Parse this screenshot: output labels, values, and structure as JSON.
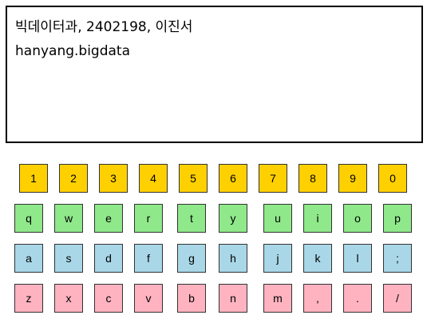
{
  "display": {
    "line1": "빅데이터과, 2402198, 이진서",
    "line2": "hanyang.bigdata"
  },
  "keyboard": {
    "row_numbers": [
      "1",
      "2",
      "3",
      "4",
      "5",
      "6",
      "7",
      "8",
      "9",
      "0"
    ],
    "row_qwerty": [
      "q",
      "w",
      "e",
      "r",
      "t",
      "y",
      "u",
      "i",
      "o",
      "p"
    ],
    "row_asdf": [
      "a",
      "s",
      "d",
      "f",
      "g",
      "h",
      "j",
      "k",
      "l",
      ";"
    ],
    "row_zxcv": [
      "z",
      "x",
      "c",
      "v",
      "b",
      "n",
      "m",
      ",",
      ".",
      "/"
    ]
  },
  "colors": {
    "numbers": "#ffd000",
    "qwerty": "#8fe88a",
    "asdf": "#a9d7e8",
    "zxcv": "#ffb3c0"
  }
}
